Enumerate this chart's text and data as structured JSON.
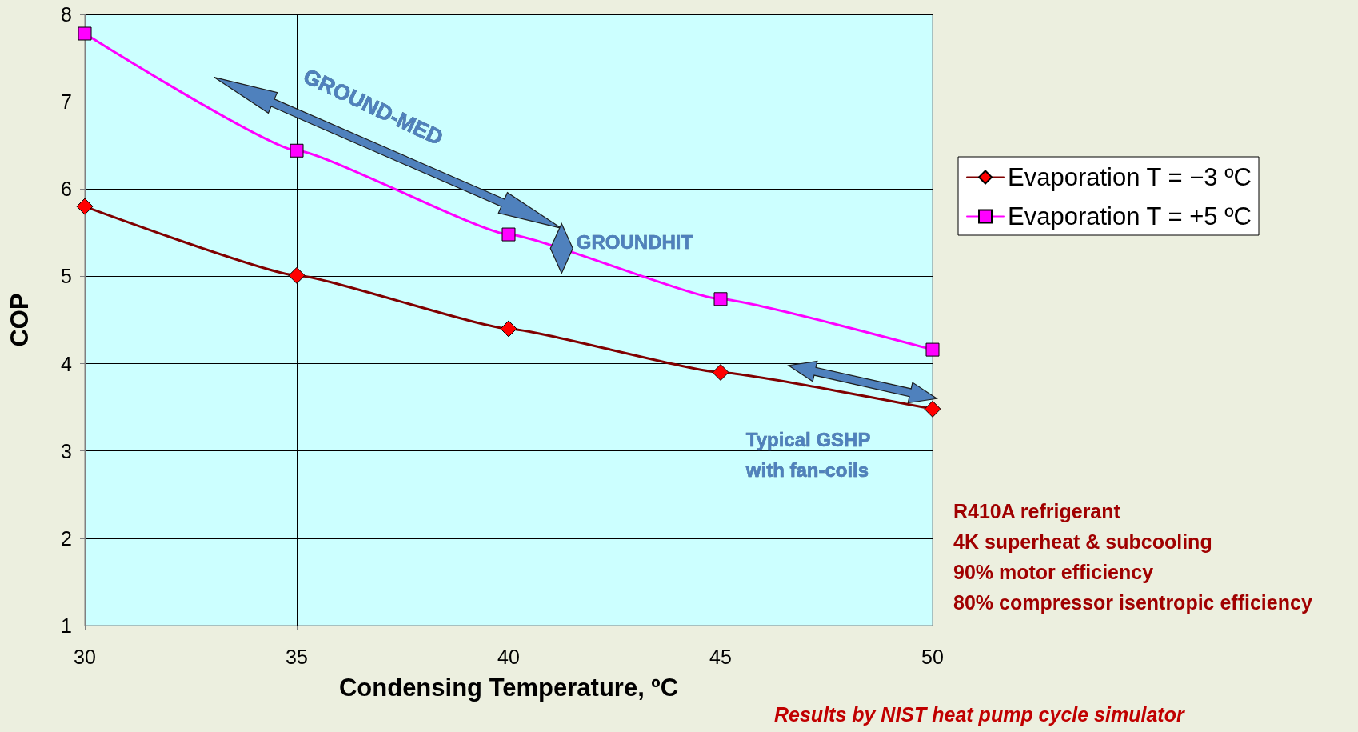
{
  "chart_data": {
    "type": "line",
    "xlabel": "Condensing Temperature, ºC",
    "ylabel": "COP",
    "x": [
      30,
      35,
      40,
      45,
      50
    ],
    "series": [
      {
        "name": "Evaporation T = −3 ºC",
        "color": "#800000",
        "marker": "diamond",
        "values": [
          5.8,
          5.01,
          4.4,
          3.9,
          3.48
        ]
      },
      {
        "name": "Evaporation T = +5 ºC",
        "color": "#ff00ff",
        "marker": "square",
        "values": [
          7.78,
          6.44,
          5.48,
          4.74,
          4.16
        ]
      }
    ],
    "xlim": [
      30,
      50
    ],
    "xticks": [
      30,
      35,
      40,
      45,
      50
    ],
    "ylim": [
      1,
      8
    ],
    "yticks": [
      1,
      2,
      3,
      4,
      5,
      6,
      7,
      8
    ],
    "grid": true,
    "legend": "right",
    "annotations": [
      "GROUND-MED",
      "GROUNDHIT",
      "Typical GSHP with fan-coils",
      "R410A refrigerant",
      "4K superheat & subcooling",
      "90% motor efficiency",
      "80% compressor isentropic efficiency",
      "Results by NIST heat pump cycle simulator"
    ]
  }
}
